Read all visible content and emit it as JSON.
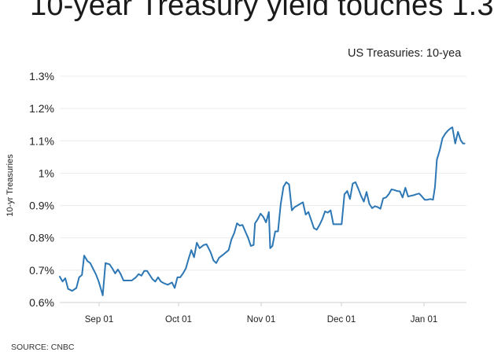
{
  "page": {
    "title": "10-year Treasury yield touches 1.3",
    "source": "SOURCE: CNBC"
  },
  "chart_data": {
    "type": "line",
    "legend": "US Treasuries: 10-yea",
    "ylabel": "10-yr Treasuries",
    "xlabel": "",
    "ylim": [
      0.6,
      1.3
    ],
    "yticks": [
      {
        "value": 0.6,
        "label": "0.6%"
      },
      {
        "value": 0.7,
        "label": "0.7%"
      },
      {
        "value": 0.8,
        "label": "0.8%"
      },
      {
        "value": 0.9,
        "label": "0.9%"
      },
      {
        "value": 1.0,
        "label": "1%"
      },
      {
        "value": 1.1,
        "label": "1.1%"
      },
      {
        "value": 1.2,
        "label": "1.2%"
      },
      {
        "value": 1.3,
        "label": "1.3%"
      }
    ],
    "xticks": [
      "Sep 01",
      "Oct 01",
      "Nov 01",
      "Dec 01",
      "Jan 01"
    ],
    "grid": true,
    "color": "#2d77b5",
    "series": [
      {
        "points": [
          [
            0.0,
            0.68
          ],
          [
            0.01,
            0.665
          ],
          [
            0.02,
            0.675
          ],
          [
            0.03,
            0.642
          ],
          [
            0.045,
            0.636
          ],
          [
            0.06,
            0.645
          ],
          [
            0.07,
            0.678
          ],
          [
            0.08,
            0.685
          ],
          [
            0.088,
            0.745
          ],
          [
            0.1,
            0.728
          ],
          [
            0.11,
            0.722
          ],
          [
            0.12,
            0.705
          ],
          [
            0.13,
            0.688
          ],
          [
            0.14,
            0.666
          ],
          [
            0.15,
            0.638
          ],
          [
            0.155,
            0.622
          ],
          [
            0.165,
            0.722
          ],
          [
            0.18,
            0.718
          ],
          [
            0.19,
            0.705
          ],
          [
            0.2,
            0.69
          ],
          [
            0.21,
            0.702
          ],
          [
            0.22,
            0.688
          ],
          [
            0.23,
            0.668
          ],
          [
            0.245,
            0.668
          ],
          [
            0.26,
            0.668
          ],
          [
            0.275,
            0.678
          ],
          [
            0.285,
            0.688
          ],
          [
            0.295,
            0.683
          ],
          [
            0.305,
            0.698
          ],
          [
            0.315,
            0.698
          ],
          [
            0.325,
            0.685
          ],
          [
            0.335,
            0.672
          ],
          [
            0.345,
            0.665
          ],
          [
            0.355,
            0.678
          ],
          [
            0.365,
            0.665
          ],
          [
            0.375,
            0.66
          ],
          [
            0.39,
            0.655
          ],
          [
            0.405,
            0.662
          ],
          [
            0.415,
            0.645
          ],
          [
            0.425,
            0.678
          ],
          [
            0.435,
            0.678
          ],
          [
            0.445,
            0.69
          ],
          [
            0.455,
            0.705
          ],
          [
            0.465,
            0.735
          ],
          [
            0.475,
            0.762
          ],
          [
            0.485,
            0.74
          ],
          [
            0.495,
            0.785
          ],
          [
            0.505,
            0.768
          ],
          [
            0.52,
            0.778
          ],
          [
            0.53,
            0.78
          ],
          [
            0.545,
            0.755
          ],
          [
            0.555,
            0.73
          ],
          [
            0.565,
            0.722
          ],
          [
            0.575,
            0.738
          ],
          [
            0.59,
            0.748
          ],
          [
            0.6,
            0.755
          ],
          [
            0.61,
            0.762
          ],
          [
            0.62,
            0.795
          ],
          [
            0.63,
            0.815
          ],
          [
            0.64,
            0.845
          ],
          [
            0.65,
            0.838
          ],
          [
            0.66,
            0.84
          ],
          [
            0.67,
            0.82
          ],
          [
            0.68,
            0.8
          ],
          [
            0.69,
            0.775
          ],
          [
            0.7,
            0.778
          ],
          [
            0.705,
            0.845
          ],
          [
            0.715,
            0.858
          ],
          [
            0.725,
            0.875
          ],
          [
            0.735,
            0.865
          ],
          [
            0.745,
            0.848
          ],
          [
            0.755,
            0.88
          ],
          [
            0.76,
            0.768
          ],
          [
            0.768,
            0.775
          ],
          [
            0.778,
            0.82
          ],
          [
            0.788,
            0.82
          ],
          [
            0.798,
            0.905
          ],
          [
            0.808,
            0.958
          ],
          [
            0.818,
            0.972
          ],
          [
            0.828,
            0.965
          ],
          [
            0.838,
            0.885
          ],
          [
            0.848,
            0.895
          ],
          [
            0.858,
            0.9
          ],
          [
            0.868,
            0.905
          ],
          [
            0.878,
            0.91
          ],
          [
            0.888,
            0.872
          ],
          [
            0.898,
            0.88
          ],
          [
            0.908,
            0.855
          ],
          [
            0.918,
            0.83
          ],
          [
            0.928,
            0.825
          ],
          [
            0.938,
            0.84
          ],
          [
            0.948,
            0.858
          ],
          [
            0.958,
            0.882
          ],
          [
            0.968,
            0.878
          ],
          [
            0.978,
            0.885
          ],
          [
            0.988,
            0.842
          ],
          [
            0.998,
            0.842
          ],
          [
            1.008,
            0.842
          ],
          [
            1.018,
            0.842
          ],
          [
            1.028,
            0.935
          ],
          [
            1.038,
            0.945
          ],
          [
            1.048,
            0.92
          ],
          [
            1.058,
            0.968
          ],
          [
            1.068,
            0.972
          ],
          [
            1.078,
            0.952
          ],
          [
            1.088,
            0.93
          ],
          [
            1.098,
            0.912
          ],
          [
            1.108,
            0.942
          ],
          [
            1.118,
            0.905
          ],
          [
            1.128,
            0.892
          ],
          [
            1.138,
            0.898
          ],
          [
            1.148,
            0.895
          ],
          [
            1.158,
            0.89
          ],
          [
            1.168,
            0.922
          ],
          [
            1.178,
            0.925
          ],
          [
            1.188,
            0.935
          ],
          [
            1.198,
            0.95
          ],
          [
            1.208,
            0.948
          ],
          [
            1.218,
            0.945
          ],
          [
            1.228,
            0.944
          ],
          [
            1.238,
            0.925
          ],
          [
            1.248,
            0.955
          ],
          [
            1.258,
            0.928
          ],
          [
            1.268,
            0.93
          ],
          [
            1.278,
            0.932
          ],
          [
            1.288,
            0.935
          ],
          [
            1.298,
            0.937
          ],
          [
            1.308,
            0.928
          ],
          [
            1.318,
            0.918
          ],
          [
            1.328,
            0.918
          ],
          [
            1.338,
            0.92
          ],
          [
            1.348,
            0.918
          ],
          [
            1.355,
            0.958
          ],
          [
            1.362,
            1.042
          ],
          [
            1.372,
            1.07
          ],
          [
            1.382,
            1.108
          ],
          [
            1.392,
            1.122
          ],
          [
            1.402,
            1.132
          ],
          [
            1.41,
            1.138
          ],
          [
            1.418,
            1.142
          ],
          [
            1.428,
            1.092
          ],
          [
            1.438,
            1.128
          ],
          [
            1.448,
            1.102
          ],
          [
            1.456,
            1.092
          ],
          [
            1.462,
            1.092
          ]
        ]
      }
    ]
  }
}
